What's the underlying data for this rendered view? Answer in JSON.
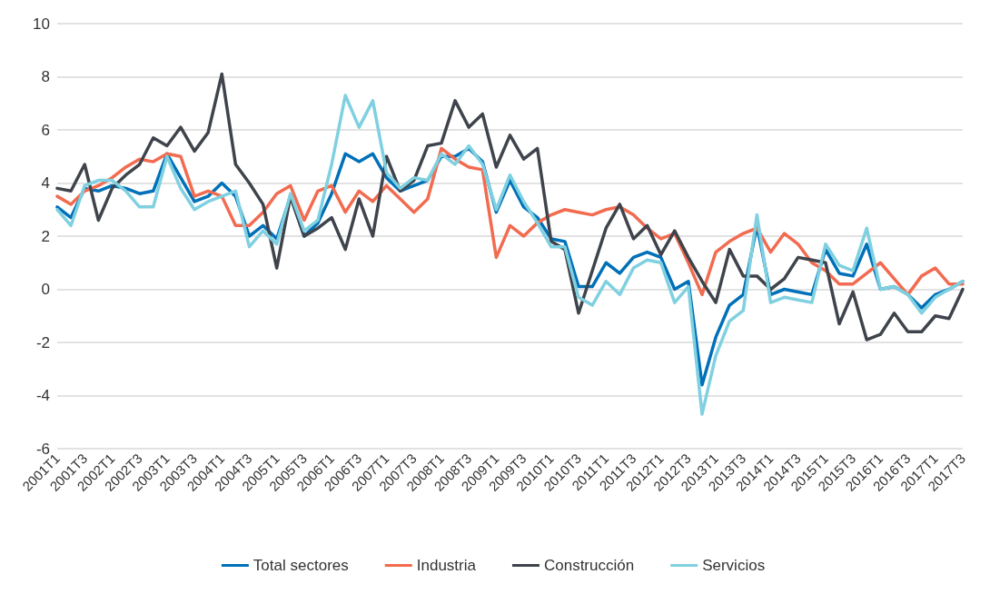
{
  "chart_data": {
    "type": "line",
    "categories": [
      "2001T1",
      null,
      "2001T3",
      null,
      "2002T1",
      null,
      "2002T3",
      null,
      "2003T1",
      null,
      "2003T3",
      null,
      "2004T1",
      null,
      "2004T3",
      null,
      "2005T1",
      null,
      "2005T3",
      null,
      "2006T1",
      null,
      "2006T3",
      null,
      "2007T1",
      null,
      "2007T3",
      null,
      "2008T1",
      null,
      "2008T3",
      null,
      "2009T1",
      null,
      "2009T3",
      null,
      "2010T1",
      null,
      "2010T3",
      null,
      "2011T1",
      null,
      "2011T3",
      null,
      "2012T1",
      null,
      "2012T3",
      null,
      "2013T1",
      null,
      "2013T3",
      null,
      "2014T1",
      null,
      "2014T3",
      null,
      "2015T1",
      null,
      "2015T3",
      null,
      "2016T1",
      null,
      "2016T3",
      null,
      "2017T1",
      null,
      "2017T3"
    ],
    "series": [
      {
        "name": "Total sectores",
        "color": "#0070b8",
        "values": [
          3.1,
          2.7,
          3.8,
          3.7,
          3.9,
          3.8,
          3.6,
          3.7,
          5.1,
          4.2,
          3.3,
          3.5,
          4.0,
          3.5,
          2.0,
          2.4,
          1.9,
          3.5,
          2.0,
          2.5,
          3.6,
          5.1,
          4.8,
          5.1,
          4.2,
          3.7,
          3.9,
          4.1,
          5.0,
          5.0,
          5.3,
          4.8,
          2.9,
          4.1,
          3.1,
          2.7,
          1.9,
          1.8,
          0.1,
          0.1,
          1.0,
          0.6,
          1.2,
          1.4,
          1.2,
          0.0,
          0.3,
          -3.6,
          -1.8,
          -0.6,
          -0.2,
          2.4,
          -0.2,
          0.0,
          -0.1,
          -0.2,
          1.5,
          0.6,
          0.5,
          1.7,
          0.0,
          0.1,
          -0.2,
          -0.7,
          -0.2,
          0.0,
          0.3
        ]
      },
      {
        "name": "Industria",
        "color": "#f26b50",
        "values": [
          3.5,
          3.2,
          3.7,
          3.9,
          4.2,
          4.6,
          4.9,
          4.8,
          5.1,
          5.0,
          3.5,
          3.7,
          3.5,
          2.4,
          2.4,
          2.9,
          3.6,
          3.9,
          2.6,
          3.7,
          3.9,
          2.9,
          3.7,
          3.3,
          3.9,
          3.4,
          2.9,
          3.4,
          5.3,
          4.9,
          4.6,
          4.5,
          1.2,
          2.4,
          2.0,
          2.5,
          2.8,
          3.0,
          2.9,
          2.8,
          3.0,
          3.1,
          2.8,
          2.3,
          1.9,
          2.1,
          1.0,
          -0.2,
          1.4,
          1.8,
          2.1,
          2.3,
          1.4,
          2.1,
          1.7,
          1.0,
          0.7,
          0.2,
          0.2,
          0.6,
          1.0,
          0.4,
          -0.2,
          0.5,
          0.8,
          0.2,
          0.2
        ]
      },
      {
        "name": "Construcción",
        "color": "#3f444c",
        "values": [
          3.8,
          3.7,
          4.7,
          2.6,
          3.8,
          4.3,
          4.7,
          5.7,
          5.4,
          6.1,
          5.2,
          5.9,
          8.1,
          4.7,
          4.0,
          3.2,
          0.8,
          3.5,
          2.0,
          2.3,
          2.7,
          1.5,
          3.4,
          2.0,
          5.0,
          3.7,
          4.1,
          5.4,
          5.5,
          7.1,
          6.1,
          6.6,
          4.6,
          5.8,
          4.9,
          5.3,
          1.8,
          1.5,
          -0.9,
          0.7,
          2.3,
          3.2,
          1.9,
          2.4,
          1.3,
          2.2,
          1.2,
          0.3,
          -0.5,
          1.5,
          0.5,
          0.5,
          0.0,
          0.4,
          1.2,
          1.1,
          1.0,
          -1.3,
          -0.1,
          -1.9,
          -1.7,
          -0.9,
          -1.6,
          -1.6,
          -1.0,
          -1.1,
          0.0
        ]
      },
      {
        "name": "Servicios",
        "color": "#7fd0e0",
        "values": [
          3.0,
          2.4,
          3.9,
          4.1,
          4.1,
          3.7,
          3.1,
          3.1,
          5.0,
          3.8,
          3.0,
          3.3,
          3.5,
          3.7,
          1.6,
          2.2,
          1.7,
          3.6,
          2.2,
          2.6,
          4.7,
          7.3,
          6.1,
          7.1,
          4.4,
          3.8,
          4.2,
          4.1,
          5.1,
          4.7,
          5.4,
          4.7,
          3.0,
          4.3,
          3.3,
          2.5,
          1.6,
          1.6,
          -0.3,
          -0.6,
          0.3,
          -0.2,
          0.8,
          1.1,
          1.0,
          -0.5,
          0.1,
          -4.7,
          -2.5,
          -1.2,
          -0.8,
          2.8,
          -0.5,
          -0.3,
          -0.4,
          -0.5,
          1.7,
          0.9,
          0.7,
          2.3,
          0.0,
          0.1,
          -0.2,
          -0.9,
          -0.3,
          0.0,
          0.3
        ]
      }
    ],
    "ylim": [
      -6,
      10
    ],
    "yticks": [
      -6,
      -4,
      -2,
      0,
      2,
      4,
      6,
      8,
      10
    ],
    "grid": "y",
    "legend": "bottom",
    "marker": "none",
    "line_style": "solid"
  }
}
